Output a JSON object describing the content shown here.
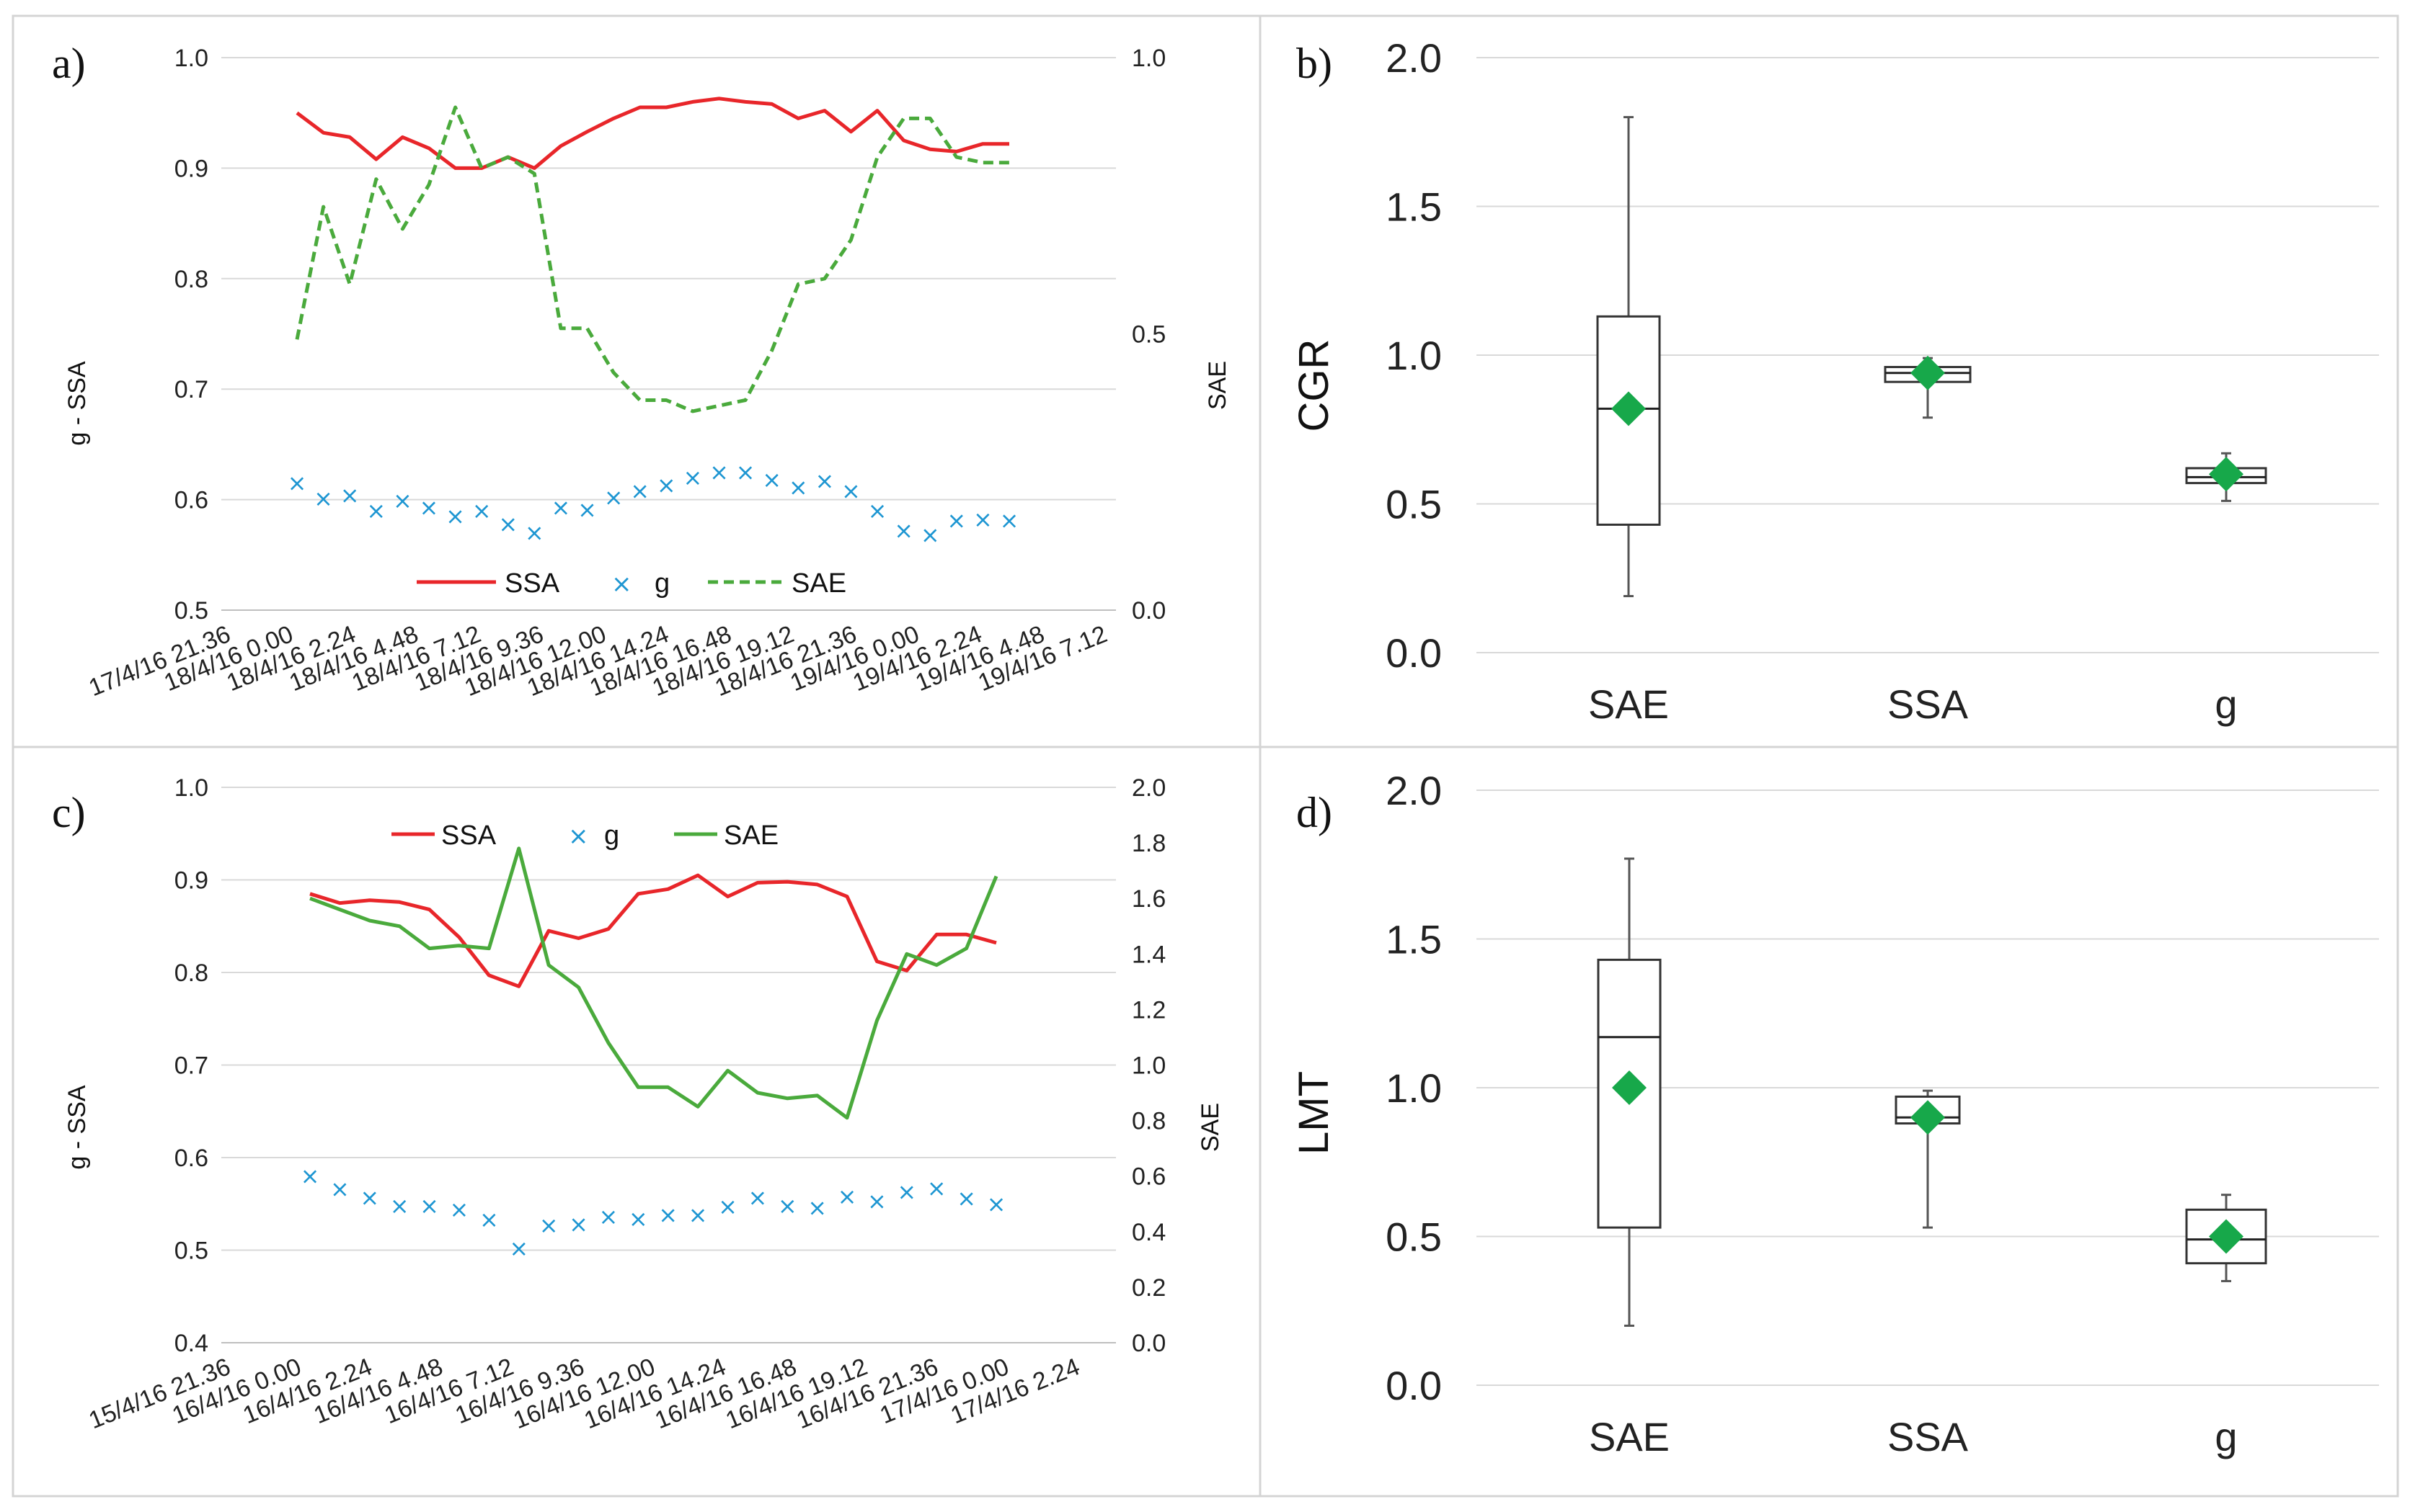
{
  "chart_data": [
    {
      "panel": "a)",
      "type": "line",
      "ylabel": "g - SSA",
      "y2label": "SAE",
      "ylim": [
        0.5,
        1.0
      ],
      "yticks": [
        "0.5",
        "0.6",
        "0.7",
        "0.8",
        "0.9",
        "1.0"
      ],
      "y2lim": [
        0.0,
        1.0
      ],
      "y2ticks": [
        "0.0",
        "0.5",
        "1.0"
      ],
      "xticks": [
        "17/4/16 21.36",
        "18/4/16 0.00",
        "18/4/16 2.24",
        "18/4/16 4.48",
        "18/4/16 7.12",
        "18/4/16 9.36",
        "18/4/16 12.00",
        "18/4/16 14.24",
        "18/4/16 16.48",
        "18/4/16 19.12",
        "18/4/16 21.36",
        "19/4/16 0.00",
        "19/4/16 2.24",
        "19/4/16 4.48",
        "19/4/16 7.12"
      ],
      "legend": [
        "SSA",
        "g",
        "SAE"
      ],
      "series": [
        {
          "name": "SSA",
          "axis": "left",
          "color": "#e8262a",
          "style": "solid",
          "marker": "none",
          "values": [
            0.95,
            0.932,
            0.928,
            0.908,
            0.928,
            0.918,
            0.9,
            0.9,
            0.91,
            0.9,
            0.92,
            0.933,
            0.945,
            0.955,
            0.955,
            0.96,
            0.963,
            0.96,
            0.958,
            0.945,
            0.952,
            0.933,
            0.952,
            0.925,
            0.917,
            0.915,
            0.922,
            0.922
          ]
        },
        {
          "name": "g",
          "axis": "left",
          "color": "#1e96d2",
          "style": "none",
          "marker": "x",
          "values": [
            0.615,
            0.601,
            0.604,
            0.59,
            0.599,
            0.593,
            0.585,
            0.59,
            0.578,
            0.57,
            0.593,
            0.591,
            0.602,
            0.608,
            0.613,
            0.62,
            0.625,
            0.625,
            0.618,
            0.611,
            0.617,
            0.608,
            0.59,
            0.572,
            0.568,
            0.581,
            0.582,
            0.581
          ]
        },
        {
          "name": "SAE",
          "axis": "right",
          "color": "#4aaa3c",
          "style": "dashed",
          "marker": "none",
          "values": [
            0.49,
            0.73,
            0.59,
            0.78,
            0.69,
            0.77,
            0.91,
            0.8,
            0.82,
            0.79,
            0.51,
            0.51,
            0.43,
            0.38,
            0.38,
            0.36,
            0.37,
            0.38,
            0.47,
            0.59,
            0.6,
            0.67,
            0.82,
            0.89,
            0.89,
            0.82,
            0.81,
            0.81
          ]
        }
      ]
    },
    {
      "panel": "b)",
      "type": "box",
      "ylabel": "CGR",
      "ylim": [
        0.0,
        2.0
      ],
      "yticks": [
        "0.0",
        "0.5",
        "1.0",
        "1.5",
        "2.0"
      ],
      "categories": [
        "SAE",
        "SSA",
        "g"
      ],
      "boxes": [
        {
          "min": 0.19,
          "q1": 0.43,
          "median": 0.82,
          "q3": 1.13,
          "max": 1.8,
          "mean": 0.82
        },
        {
          "min": 0.79,
          "q1": 0.91,
          "median": 0.94,
          "q3": 0.96,
          "max": 0.99,
          "mean": 0.94
        },
        {
          "min": 0.51,
          "q1": 0.57,
          "median": 0.59,
          "q3": 0.62,
          "max": 0.67,
          "mean": 0.6
        }
      ],
      "mean_color": "#17a84a"
    },
    {
      "panel": "c)",
      "type": "line",
      "ylabel": "g - SSA",
      "y2label": "SAE",
      "ylim": [
        0.4,
        1.0
      ],
      "yticks": [
        "0.4",
        "0.5",
        "0.6",
        "0.7",
        "0.8",
        "0.9",
        "1.0"
      ],
      "y2lim": [
        0.0,
        2.0
      ],
      "y2ticks": [
        "0.0",
        "0.2",
        "0.4",
        "0.6",
        "0.8",
        "1.0",
        "1.2",
        "1.4",
        "1.6",
        "1.8",
        "2.0"
      ],
      "xticks": [
        "15/4/16 21.36",
        "16/4/16 0.00",
        "16/4/16 2.24",
        "16/4/16 4.48",
        "16/4/16 7.12",
        "16/4/16 9.36",
        "16/4/16 12.00",
        "16/4/16 14.24",
        "16/4/16 16.48",
        "16/4/16 19.12",
        "16/4/16 21.36",
        "17/4/16 0.00",
        "17/4/16 2.24"
      ],
      "legend": [
        "SSA",
        "g",
        "SAE"
      ],
      "series": [
        {
          "name": "SSA",
          "axis": "left",
          "color": "#e8262a",
          "style": "solid",
          "marker": "none",
          "values": [
            0.885,
            0.875,
            0.878,
            0.876,
            0.868,
            0.838,
            0.797,
            0.785,
            0.845,
            0.837,
            0.847,
            0.885,
            0.89,
            0.905,
            0.882,
            0.897,
            0.898,
            0.895,
            0.882,
            0.812,
            0.802,
            0.841,
            0.841,
            0.832
          ]
        },
        {
          "name": "g",
          "axis": "left",
          "color": "#1e96d2",
          "style": "none",
          "marker": "x",
          "values": [
            0.58,
            0.566,
            0.557,
            0.548,
            0.548,
            0.544,
            0.533,
            0.502,
            0.527,
            0.528,
            0.536,
            0.534,
            0.538,
            0.538,
            0.547,
            0.557,
            0.548,
            0.546,
            0.558,
            0.553,
            0.563,
            0.567,
            0.556,
            0.55
          ]
        },
        {
          "name": "SAE",
          "axis": "right",
          "color": "#4aaa3c",
          "style": "solid",
          "marker": "none",
          "values": [
            1.6,
            1.56,
            1.52,
            1.5,
            1.42,
            1.43,
            1.42,
            1.78,
            1.36,
            1.28,
            1.08,
            0.92,
            0.92,
            0.85,
            0.98,
            0.9,
            0.88,
            0.89,
            0.81,
            1.16,
            1.4,
            1.36,
            1.42,
            1.68
          ]
        }
      ]
    },
    {
      "panel": "d)",
      "type": "box",
      "ylabel": "LMT",
      "ylim": [
        0.0,
        2.0
      ],
      "yticks": [
        "0.0",
        "0.5",
        "1.0",
        "1.5",
        "2.0"
      ],
      "categories": [
        "SAE",
        "SSA",
        "g"
      ],
      "boxes": [
        {
          "min": 0.2,
          "q1": 0.53,
          "median": 1.17,
          "q3": 1.43,
          "max": 1.77,
          "mean": 1.0
        },
        {
          "min": 0.53,
          "q1": 0.88,
          "median": 0.9,
          "q3": 0.97,
          "max": 0.99,
          "mean": 0.9
        },
        {
          "min": 0.35,
          "q1": 0.41,
          "median": 0.49,
          "q3": 0.59,
          "max": 0.64,
          "mean": 0.5
        }
      ],
      "mean_color": "#17a84a"
    }
  ]
}
